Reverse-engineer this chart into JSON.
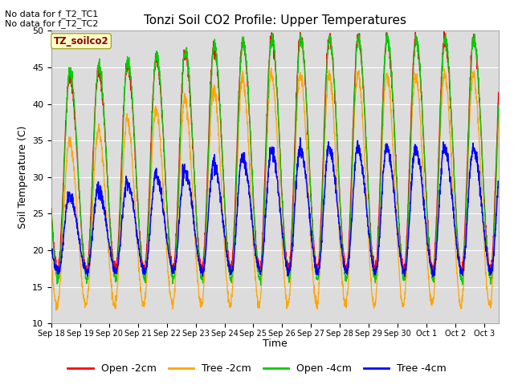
{
  "title": "Tonzi Soil CO2 Profile: Upper Temperatures",
  "xlabel": "Time",
  "ylabel": "Soil Temperature (C)",
  "ylim": [
    10,
    50
  ],
  "text_no_data_1": "No data for f_T2_TC1",
  "text_no_data_2": "No data for f_T2_TC2",
  "legend_label": "TZ_soilco2",
  "legend_entries": [
    "Open -2cm",
    "Tree -2cm",
    "Open -4cm",
    "Tree -4cm"
  ],
  "legend_colors": [
    "#ff0000",
    "#ffa500",
    "#00cc00",
    "#0000ff"
  ],
  "bg_color": "#dcdcdc",
  "n_days": 15.5,
  "ppd": 144,
  "colors": {
    "open_2cm": "#ff0000",
    "tree_2cm": "#ffa500",
    "open_4cm": "#00cc00",
    "tree_4cm": "#0000ff"
  },
  "tick_dates": [
    "Sep 18",
    "Sep 19",
    "Sep 20",
    "Sep 21",
    "Sep 22",
    "Sep 23",
    "Sep 24",
    "Sep 25",
    "Sep 26",
    "Sep 27",
    "Sep 28",
    "Sep 29",
    "Sep 30",
    "Oct 1",
    "Oct 2",
    "Oct 3"
  ],
  "yticks": [
    10,
    15,
    20,
    25,
    30,
    35,
    40,
    45,
    50
  ]
}
